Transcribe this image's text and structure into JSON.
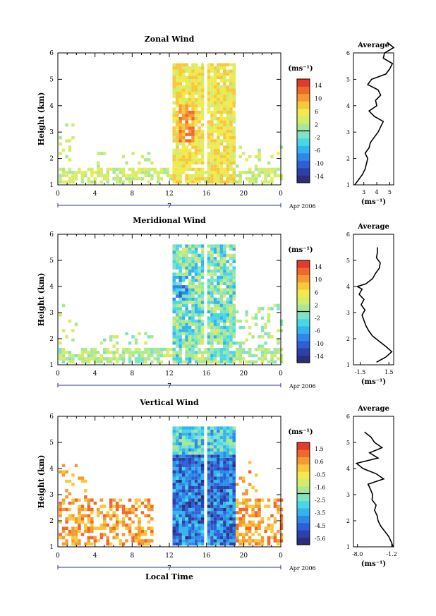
{
  "chart_data": [
    {
      "type": "heatmap",
      "title": "Zonal Wind",
      "ylabel": "Height (km)",
      "xlabel": "",
      "xlim": [
        0,
        24
      ],
      "ylim": [
        1,
        6
      ],
      "x_ticks": [
        "0",
        "4",
        "8",
        "12",
        "16",
        "20",
        "0"
      ],
      "y_ticks": [
        "1",
        "2",
        "3",
        "4",
        "5",
        "6"
      ],
      "date_marker": "7",
      "date_label": "Apr 2006",
      "colorbar": {
        "unit": "(ms⁻¹)",
        "ticks": [
          "14",
          "10",
          "6",
          "2",
          "-2",
          "-6",
          "-10",
          "-14"
        ],
        "range": [
          -16,
          16
        ]
      },
      "average_profile": {
        "title": "Average",
        "xlabel": "(ms⁻¹)",
        "x_ticks": [
          "3",
          "4",
          "5"
        ],
        "xlim": [
          2.2,
          5.3
        ],
        "heights": [
          1.0,
          1.2,
          1.4,
          1.6,
          1.8,
          2.0,
          2.2,
          2.4,
          2.6,
          2.8,
          3.0,
          3.2,
          3.4,
          3.6,
          3.8,
          4.0,
          4.2,
          4.4,
          4.6,
          4.8,
          5.0,
          5.2,
          5.4,
          5.6,
          5.8,
          6.0,
          6.2,
          6.4
        ],
        "values": [
          2.3,
          2.6,
          2.9,
          3.1,
          3.2,
          3.3,
          3.1,
          3.4,
          3.5,
          3.8,
          4.1,
          4.3,
          4.5,
          3.8,
          3.4,
          4.0,
          3.9,
          4.3,
          4.1,
          3.3,
          3.6,
          4.7,
          5.0,
          5.2,
          4.5,
          4.6,
          5.3,
          4.8
        ]
      }
    },
    {
      "type": "heatmap",
      "title": "Meridional Wind",
      "ylabel": "Height (km)",
      "xlabel": "",
      "xlim": [
        0,
        24
      ],
      "ylim": [
        1,
        6
      ],
      "x_ticks": [
        "0",
        "4",
        "8",
        "12",
        "16",
        "20",
        "0"
      ],
      "y_ticks": [
        "1",
        "2",
        "3",
        "4",
        "5",
        "6"
      ],
      "date_marker": "7",
      "date_label": "Apr 2006",
      "colorbar": {
        "unit": "(ms⁻¹)",
        "ticks": [
          "14",
          "10",
          "6",
          "2",
          "-2",
          "-6",
          "-10",
          "-14"
        ],
        "range": [
          -16,
          16
        ]
      },
      "average_profile": {
        "title": "Average",
        "xlabel": "(ms⁻¹)",
        "x_ticks": [
          "-1.5",
          "1.5"
        ],
        "xlim": [
          -2.2,
          2.0
        ],
        "heights": [
          1.1,
          1.3,
          1.5,
          1.7,
          1.9,
          2.1,
          2.3,
          2.5,
          2.7,
          2.9,
          3.1,
          3.3,
          3.5,
          3.7,
          3.9,
          4.0,
          4.1,
          4.3,
          4.5,
          4.7,
          4.9,
          5.1,
          5.3,
          5.5
        ],
        "values": [
          0.2,
          1.2,
          1.8,
          1.2,
          0.5,
          -0.2,
          -0.6,
          -0.9,
          -1.1,
          -1.3,
          -1.0,
          -1.4,
          -1.1,
          -1.6,
          -1.3,
          -1.8,
          -0.9,
          -0.2,
          0.1,
          0.5,
          0.6,
          0.2,
          0.3,
          0.3
        ]
      }
    },
    {
      "type": "heatmap",
      "title": "Vertical Wind",
      "ylabel": "Height (km)",
      "xlabel": "Local Time",
      "xlim": [
        0,
        24
      ],
      "ylim": [
        1,
        6
      ],
      "x_ticks": [
        "0",
        "4",
        "8",
        "12",
        "16",
        "20",
        "0"
      ],
      "y_ticks": [
        "1",
        "2",
        "3",
        "4",
        "5",
        "6"
      ],
      "date_marker": "7",
      "date_label": "Apr 2006",
      "colorbar": {
        "unit": "(ms⁻¹)",
        "ticks": [
          "1.5",
          "0.6",
          "-0.5",
          "-1.6",
          "-2.5",
          "-3.5",
          "-4.5",
          "-5.6"
        ],
        "range": [
          -6,
          2
        ]
      },
      "average_profile": {
        "title": "Average",
        "xlabel": "(ms⁻¹)",
        "x_ticks": [
          "-8.0",
          "-1.2"
        ],
        "xlim": [
          -8.8,
          -0.8
        ],
        "heights": [
          1.0,
          1.2,
          1.4,
          1.6,
          1.8,
          2.0,
          2.2,
          2.4,
          2.6,
          2.8,
          3.0,
          3.2,
          3.4,
          3.6,
          3.8,
          4.0,
          4.2,
          4.4,
          4.6,
          4.8,
          5.0,
          5.2,
          5.4
        ],
        "values": [
          -0.9,
          -1.3,
          -1.8,
          -2.6,
          -3.4,
          -3.9,
          -4.1,
          -4.6,
          -4.3,
          -5.1,
          -5.0,
          -5.4,
          -5.9,
          -2.8,
          -4.3,
          -6.9,
          -8.2,
          -3.9,
          -5.6,
          -3.1,
          -4.6,
          -5.3,
          -6.6
        ]
      }
    }
  ]
}
